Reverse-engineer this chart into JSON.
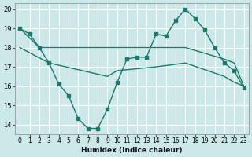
{
  "xlabel": "Humidex (Indice chaleur)",
  "bg_color": "#cce8e8",
  "grid_color": "#ffffff",
  "line_color": "#1a7a6e",
  "xlim": [
    -0.5,
    23.5
  ],
  "ylim": [
    13.5,
    20.3
  ],
  "yticks": [
    14,
    15,
    16,
    17,
    18,
    19,
    20
  ],
  "xticks": [
    0,
    1,
    2,
    3,
    4,
    5,
    6,
    7,
    8,
    9,
    10,
    11,
    12,
    13,
    14,
    15,
    16,
    17,
    18,
    19,
    20,
    21,
    22,
    23
  ],
  "series1_x": [
    0,
    1,
    2,
    3,
    4,
    5,
    6,
    7,
    8,
    9,
    10,
    11,
    12,
    13,
    14,
    15,
    16,
    17,
    18,
    19,
    20,
    21,
    22,
    23
  ],
  "series1_y": [
    19.0,
    18.7,
    18.0,
    17.2,
    16.1,
    15.5,
    14.3,
    13.8,
    13.8,
    14.8,
    16.2,
    17.4,
    17.5,
    17.5,
    18.7,
    18.6,
    19.4,
    20.0,
    19.5,
    18.9,
    18.0,
    17.2,
    16.8,
    15.9
  ],
  "series2_x": [
    0,
    2,
    10,
    17,
    21,
    22,
    23
  ],
  "series2_y": [
    19.0,
    18.0,
    18.0,
    18.0,
    17.4,
    17.2,
    16.0
  ],
  "series3_x": [
    0,
    3,
    9,
    10,
    14,
    17,
    21,
    22,
    23
  ],
  "series3_y": [
    18.0,
    17.2,
    16.5,
    16.8,
    17.0,
    17.2,
    16.5,
    16.2,
    16.0
  ],
  "marker": "s",
  "marker_size": 2.5,
  "line_width": 1.0
}
